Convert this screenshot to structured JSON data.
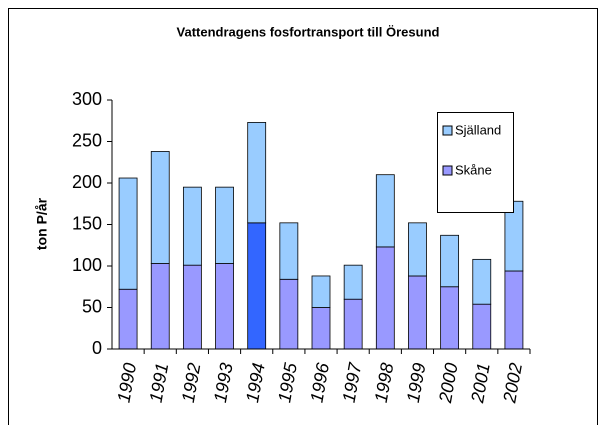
{
  "chart_data": {
    "type": "stacked_bar",
    "title": "Vattendragens fosfortransport till Öresund",
    "y_label": "ton P/år",
    "categories": [
      "1990",
      "1991",
      "1992",
      "1993",
      "1994",
      "1995",
      "1996",
      "1997",
      "1998",
      "1999",
      "2000",
      "2001",
      "2002"
    ],
    "series": [
      {
        "name": "Skåne",
        "color": "#9999ff",
        "colors": [
          "#9999ff",
          "#9999ff",
          "#9999ff",
          "#9999ff",
          "#3366ff",
          "#9999ff",
          "#9999ff",
          "#9999ff",
          "#9999ff",
          "#9999ff",
          "#9999ff",
          "#9999ff",
          "#9999ff"
        ],
        "values": [
          72,
          103,
          101,
          103,
          152,
          84,
          50,
          60,
          123,
          88,
          75,
          54,
          94
        ]
      },
      {
        "name": "Själland",
        "color": "#99ccff",
        "values": [
          134,
          135,
          94,
          92,
          121,
          68,
          38,
          41,
          87,
          64,
          62,
          54,
          84
        ]
      }
    ],
    "ylim": [
      0,
      300
    ],
    "yticks": [
      0,
      50,
      100,
      150,
      200,
      250,
      300
    ],
    "grid": false
  }
}
